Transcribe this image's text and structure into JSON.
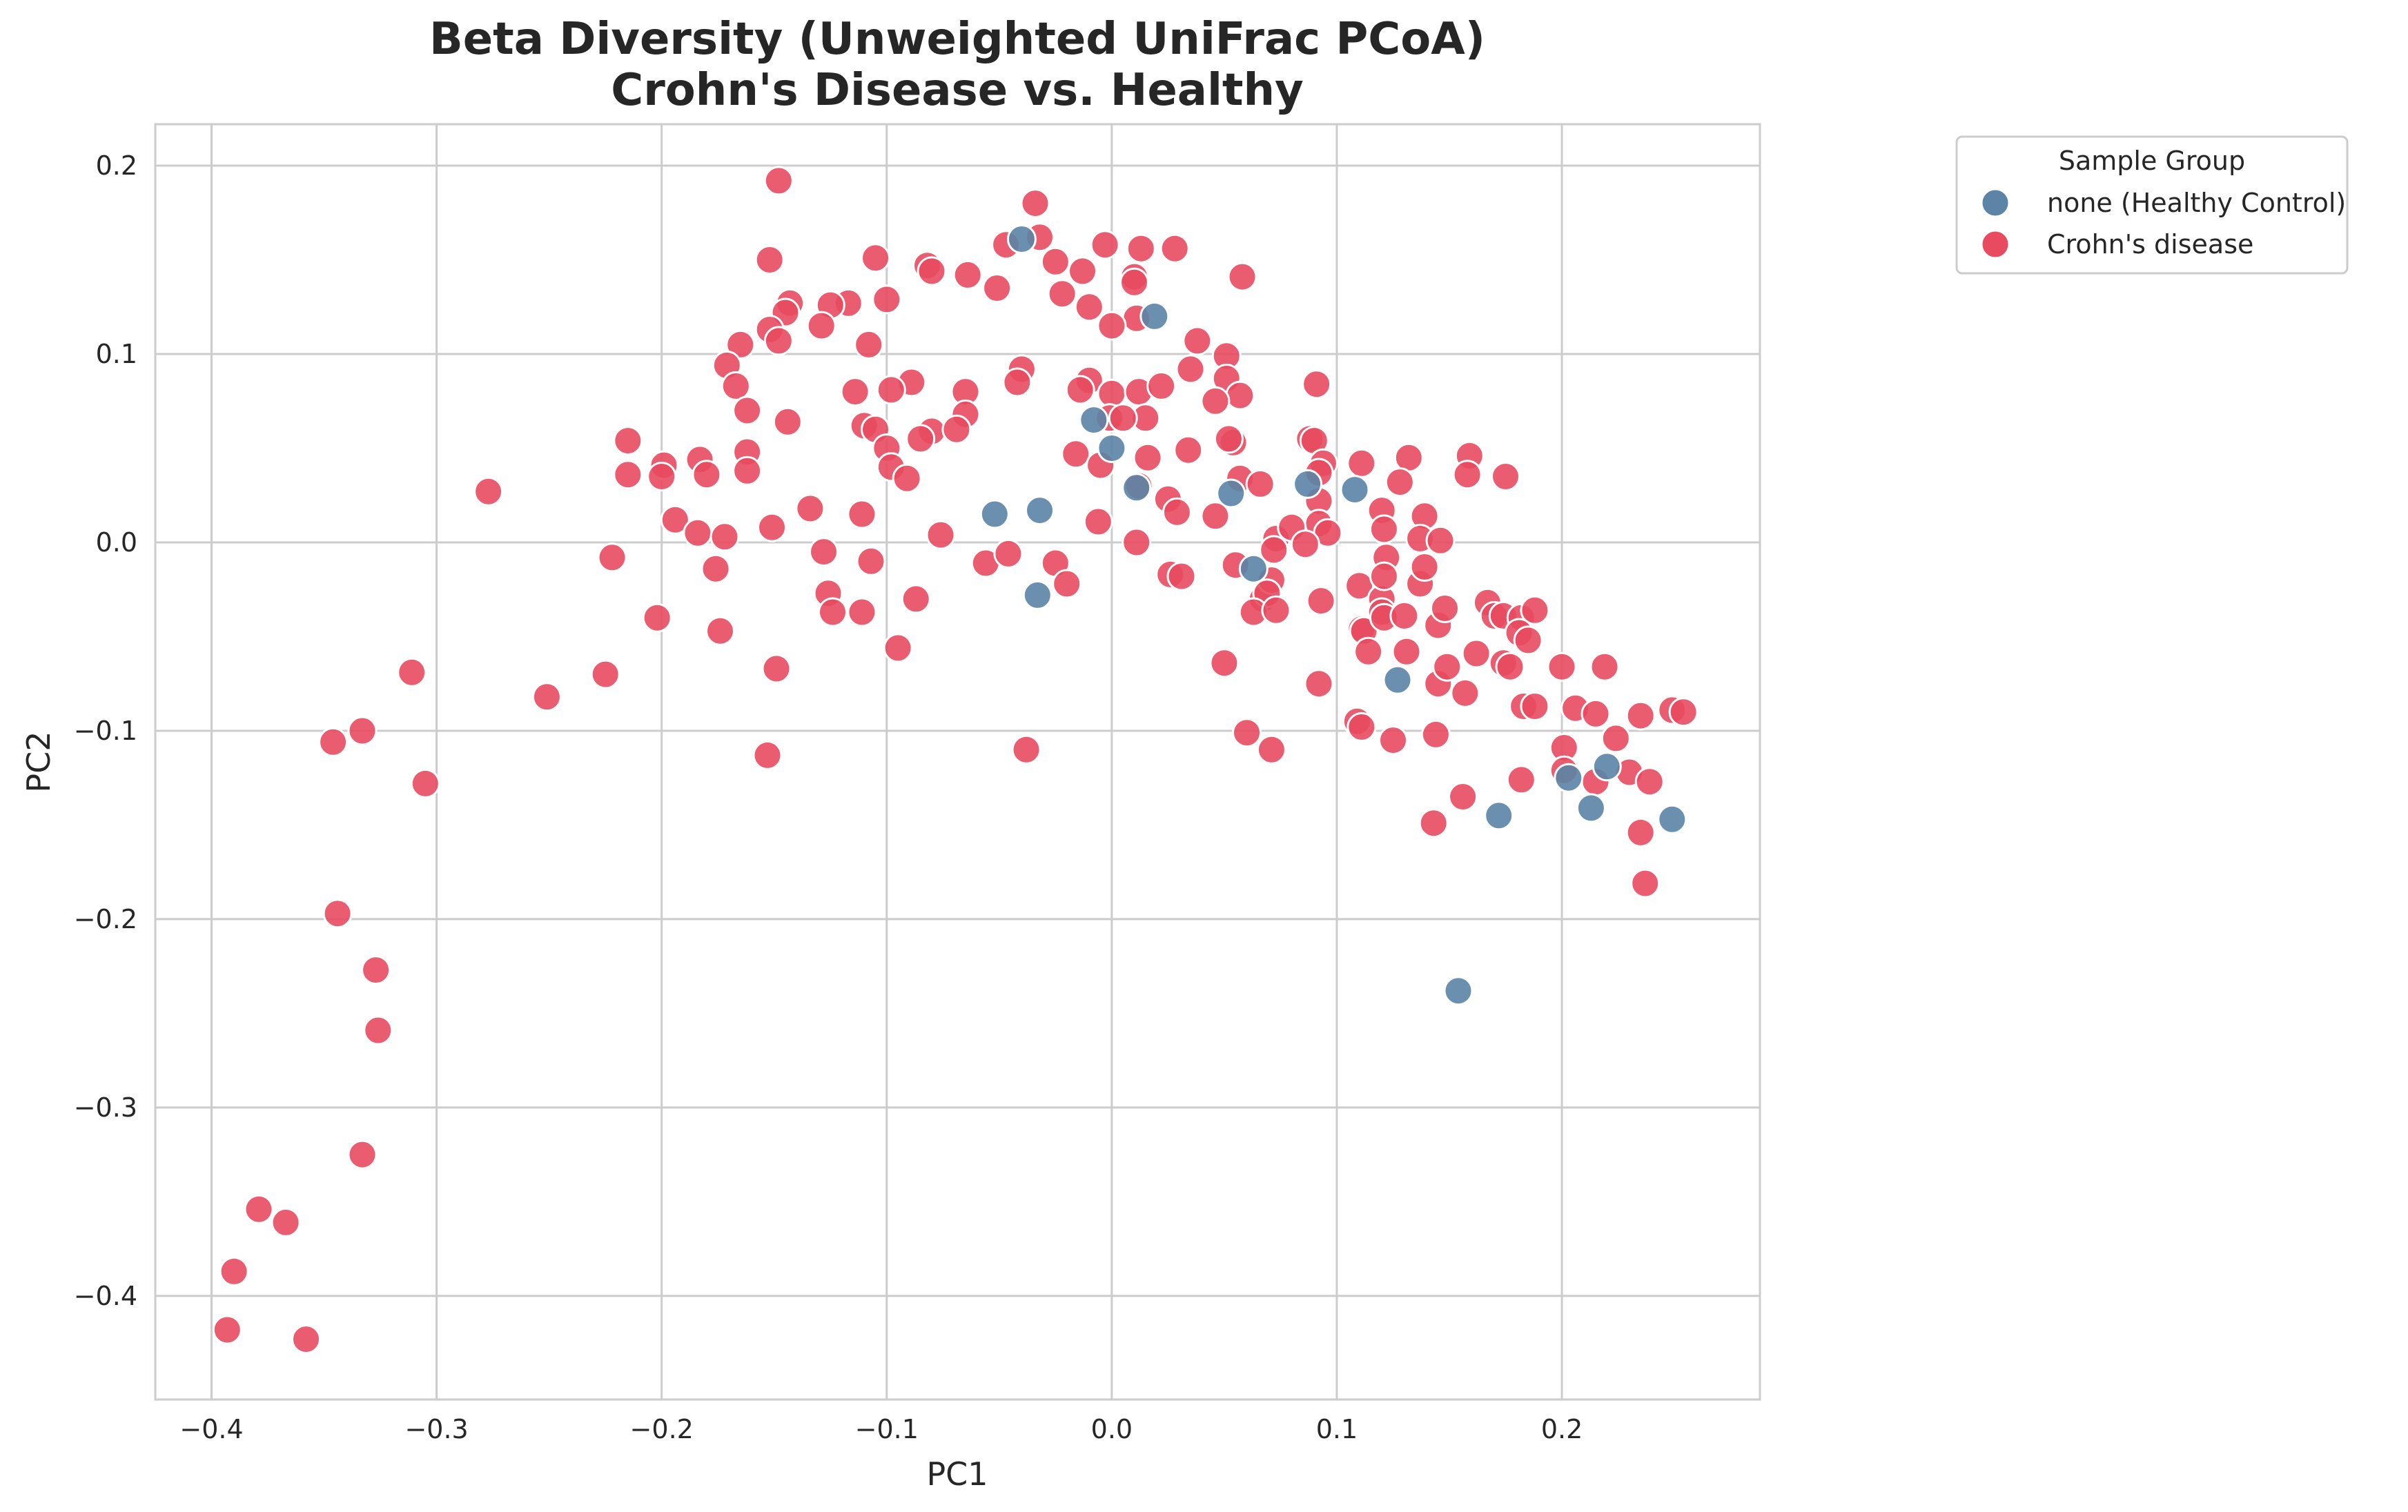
{
  "chart_data": {
    "type": "scatter",
    "title": "Beta Diversity (Unweighted UniFrac PCoA)",
    "subtitle": "Crohn's Disease vs. Healthy",
    "xlabel": "PC1",
    "ylabel": "PC2",
    "xlim": [
      -0.425,
      0.288
    ],
    "ylim": [
      -0.455,
      0.222
    ],
    "xticks": [
      -0.4,
      -0.3,
      -0.2,
      -0.1,
      0.0,
      0.1,
      0.2
    ],
    "yticks": [
      -0.4,
      -0.3,
      -0.2,
      -0.1,
      0.0,
      0.1,
      0.2
    ],
    "xtick_labels": [
      "−0.4",
      "−0.3",
      "−0.2",
      "−0.1",
      "0.0",
      "0.1",
      "0.2"
    ],
    "ytick_labels": [
      "−0.4",
      "−0.3",
      "−0.2",
      "−0.1",
      "0.0",
      "0.1",
      "0.2"
    ],
    "grid": true,
    "legend": {
      "title": "Sample Group",
      "placement": "outside-top-right"
    },
    "series": [
      {
        "name": "none (Healthy Control)",
        "color": "#5b84a6",
        "points": [
          [
            -0.04,
            0.161
          ],
          [
            0.019,
            0.12
          ],
          [
            -0.008,
            0.065
          ],
          [
            0.0,
            0.05
          ],
          [
            0.011,
            0.029
          ],
          [
            -0.052,
            0.015
          ],
          [
            -0.032,
            0.017
          ],
          [
            -0.033,
            -0.028
          ],
          [
            0.053,
            0.026
          ],
          [
            0.063,
            -0.014
          ],
          [
            0.087,
            0.031
          ],
          [
            0.108,
            0.028
          ],
          [
            0.127,
            -0.073
          ],
          [
            0.154,
            -0.238
          ],
          [
            0.172,
            -0.145
          ],
          [
            0.203,
            -0.125
          ],
          [
            0.213,
            -0.141
          ],
          [
            0.22,
            -0.119
          ],
          [
            0.249,
            -0.147
          ]
        ]
      },
      {
        "name": "Crohn's disease",
        "color": "#e84a5f",
        "points": [
          [
            -0.148,
            0.192
          ],
          [
            -0.152,
            0.15
          ],
          [
            -0.034,
            0.18
          ],
          [
            -0.032,
            0.162
          ],
          [
            -0.047,
            0.158
          ],
          [
            -0.003,
            0.158
          ],
          [
            0.013,
            0.156
          ],
          [
            0.028,
            0.156
          ],
          [
            -0.105,
            0.151
          ],
          [
            -0.082,
            0.147
          ],
          [
            -0.08,
            0.144
          ],
          [
            -0.025,
            0.149
          ],
          [
            -0.013,
            0.144
          ],
          [
            0.01,
            0.141
          ],
          [
            0.058,
            0.141
          ],
          [
            -0.064,
            0.142
          ],
          [
            -0.051,
            0.135
          ],
          [
            -0.022,
            0.132
          ],
          [
            0.01,
            0.138
          ],
          [
            -0.1,
            0.129
          ],
          [
            -0.117,
            0.127
          ],
          [
            -0.143,
            0.127
          ],
          [
            -0.125,
            0.126
          ],
          [
            -0.145,
            0.122
          ],
          [
            -0.01,
            0.125
          ],
          [
            -0.152,
            0.113
          ],
          [
            -0.129,
            0.115
          ],
          [
            -0.148,
            0.107
          ],
          [
            -0.165,
            0.105
          ],
          [
            0.011,
            0.119
          ],
          [
            0.0,
            0.115
          ],
          [
            -0.108,
            0.105
          ],
          [
            0.038,
            0.107
          ],
          [
            -0.171,
            0.094
          ],
          [
            -0.04,
            0.092
          ],
          [
            0.035,
            0.092
          ],
          [
            -0.167,
            0.083
          ],
          [
            -0.042,
            0.085
          ],
          [
            -0.089,
            0.085
          ],
          [
            -0.098,
            0.081
          ],
          [
            -0.114,
            0.08
          ],
          [
            -0.065,
            0.08
          ],
          [
            -0.01,
            0.086
          ],
          [
            -0.014,
            0.081
          ],
          [
            0.0,
            0.079
          ],
          [
            0.012,
            0.08
          ],
          [
            0.022,
            0.083
          ],
          [
            0.051,
            0.099
          ],
          [
            0.051,
            0.087
          ],
          [
            0.057,
            0.078
          ],
          [
            0.046,
            0.075
          ],
          [
            0.091,
            0.084
          ],
          [
            -0.162,
            0.07
          ],
          [
            -0.065,
            0.068
          ],
          [
            -0.144,
            0.064
          ],
          [
            -0.11,
            0.062
          ],
          [
            -0.105,
            0.06
          ],
          [
            -0.08,
            0.059
          ],
          [
            -0.069,
            0.06
          ],
          [
            -0.001,
            0.066
          ],
          [
            0.015,
            0.066
          ],
          [
            0.005,
            0.066
          ],
          [
            -0.215,
            0.054
          ],
          [
            -0.085,
            0.055
          ],
          [
            -0.1,
            0.05
          ],
          [
            0.054,
            0.053
          ],
          [
            0.052,
            0.055
          ],
          [
            0.088,
            0.055
          ],
          [
            0.09,
            0.054
          ],
          [
            -0.199,
            0.041
          ],
          [
            -0.162,
            0.048
          ],
          [
            -0.183,
            0.044
          ],
          [
            -0.162,
            0.038
          ],
          [
            -0.098,
            0.04
          ],
          [
            -0.091,
            0.034
          ],
          [
            -0.016,
            0.047
          ],
          [
            -0.005,
            0.041
          ],
          [
            0.016,
            0.045
          ],
          [
            0.034,
            0.049
          ],
          [
            0.094,
            0.042
          ],
          [
            0.111,
            0.042
          ],
          [
            0.132,
            0.045
          ],
          [
            0.159,
            0.046
          ],
          [
            -0.215,
            0.036
          ],
          [
            -0.2,
            0.035
          ],
          [
            -0.18,
            0.036
          ],
          [
            -0.277,
            0.027
          ],
          [
            0.012,
            0.03
          ],
          [
            0.057,
            0.034
          ],
          [
            0.066,
            0.031
          ],
          [
            0.092,
            0.037
          ],
          [
            0.128,
            0.032
          ],
          [
            0.158,
            0.036
          ],
          [
            0.175,
            0.035
          ],
          [
            -0.134,
            0.018
          ],
          [
            -0.111,
            0.015
          ],
          [
            -0.194,
            0.012
          ],
          [
            -0.184,
            0.005
          ],
          [
            -0.172,
            0.003
          ],
          [
            -0.151,
            0.008
          ],
          [
            -0.076,
            0.004
          ],
          [
            -0.006,
            0.011
          ],
          [
            0.025,
            0.023
          ],
          [
            0.029,
            0.016
          ],
          [
            0.046,
            0.014
          ],
          [
            0.092,
            0.022
          ],
          [
            0.092,
            0.01
          ],
          [
            0.096,
            0.005
          ],
          [
            0.12,
            0.017
          ],
          [
            0.121,
            0.007
          ],
          [
            0.139,
            0.014
          ],
          [
            0.137,
            0.002
          ],
          [
            0.146,
            0.001
          ],
          [
            -0.222,
            -0.008
          ],
          [
            -0.128,
            -0.005
          ],
          [
            -0.107,
            -0.01
          ],
          [
            -0.056,
            -0.011
          ],
          [
            -0.046,
            -0.006
          ],
          [
            0.011,
            0.0
          ],
          [
            0.055,
            -0.012
          ],
          [
            0.073,
            0.002
          ],
          [
            0.08,
            0.008
          ],
          [
            0.072,
            -0.004
          ],
          [
            0.086,
            -0.001
          ],
          [
            0.122,
            -0.008
          ],
          [
            -0.176,
            -0.014
          ],
          [
            -0.126,
            -0.027
          ],
          [
            -0.124,
            -0.037
          ],
          [
            -0.111,
            -0.037
          ],
          [
            -0.087,
            -0.03
          ],
          [
            -0.025,
            -0.011
          ],
          [
            -0.02,
            -0.022
          ],
          [
            0.026,
            -0.017
          ],
          [
            0.031,
            -0.018
          ],
          [
            0.067,
            -0.03
          ],
          [
            0.071,
            -0.02
          ],
          [
            0.069,
            -0.027
          ],
          [
            0.063,
            -0.037
          ],
          [
            0.073,
            -0.036
          ],
          [
            0.093,
            -0.031
          ],
          [
            0.11,
            -0.023
          ],
          [
            0.12,
            -0.03
          ],
          [
            0.121,
            -0.018
          ],
          [
            0.137,
            -0.022
          ],
          [
            0.139,
            -0.013
          ],
          [
            -0.202,
            -0.04
          ],
          [
            -0.174,
            -0.047
          ],
          [
            -0.095,
            -0.056
          ],
          [
            0.111,
            -0.046
          ],
          [
            0.112,
            -0.047
          ],
          [
            0.12,
            -0.037
          ],
          [
            0.121,
            -0.04
          ],
          [
            0.13,
            -0.039
          ],
          [
            0.145,
            -0.044
          ],
          [
            0.148,
            -0.035
          ],
          [
            0.167,
            -0.032
          ],
          [
            0.17,
            -0.039
          ],
          [
            0.174,
            -0.039
          ],
          [
            0.182,
            -0.04
          ],
          [
            0.188,
            -0.036
          ],
          [
            -0.311,
            -0.069
          ],
          [
            -0.225,
            -0.07
          ],
          [
            -0.149,
            -0.067
          ],
          [
            0.05,
            -0.064
          ],
          [
            0.114,
            -0.058
          ],
          [
            0.131,
            -0.058
          ],
          [
            0.145,
            -0.075
          ],
          [
            0.149,
            -0.066
          ],
          [
            0.157,
            -0.08
          ],
          [
            0.162,
            -0.059
          ],
          [
            0.174,
            -0.064
          ],
          [
            0.177,
            -0.066
          ],
          [
            0.181,
            -0.048
          ],
          [
            0.185,
            -0.052
          ],
          [
            0.183,
            -0.087
          ],
          [
            0.188,
            -0.087
          ],
          [
            0.2,
            -0.066
          ],
          [
            0.206,
            -0.088
          ],
          [
            0.215,
            -0.091
          ],
          [
            0.219,
            -0.066
          ],
          [
            -0.251,
            -0.082
          ],
          [
            -0.333,
            -0.1
          ],
          [
            -0.346,
            -0.106
          ],
          [
            -0.305,
            -0.128
          ],
          [
            -0.153,
            -0.113
          ],
          [
            -0.038,
            -0.11
          ],
          [
            0.06,
            -0.101
          ],
          [
            0.071,
            -0.11
          ],
          [
            0.092,
            -0.075
          ],
          [
            0.109,
            -0.095
          ],
          [
            0.111,
            -0.098
          ],
          [
            0.125,
            -0.105
          ],
          [
            0.144,
            -0.102
          ],
          [
            0.156,
            -0.135
          ],
          [
            0.143,
            -0.149
          ],
          [
            0.182,
            -0.126
          ],
          [
            0.201,
            -0.109
          ],
          [
            0.201,
            -0.121
          ],
          [
            0.215,
            -0.127
          ],
          [
            0.224,
            -0.104
          ],
          [
            0.23,
            -0.122
          ],
          [
            0.235,
            -0.092
          ],
          [
            0.239,
            -0.127
          ],
          [
            0.235,
            -0.154
          ],
          [
            0.237,
            -0.181
          ],
          [
            0.249,
            -0.089
          ],
          [
            0.254,
            -0.09
          ],
          [
            -0.344,
            -0.197
          ],
          [
            -0.327,
            -0.227
          ],
          [
            -0.326,
            -0.259
          ],
          [
            -0.333,
            -0.325
          ],
          [
            -0.379,
            -0.354
          ],
          [
            -0.367,
            -0.361
          ],
          [
            -0.39,
            -0.387
          ],
          [
            -0.393,
            -0.418
          ],
          [
            -0.358,
            -0.423
          ]
        ]
      }
    ]
  }
}
